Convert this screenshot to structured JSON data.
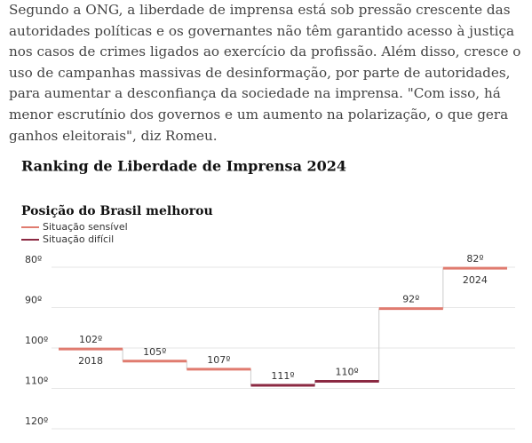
{
  "paragraph": "Segundo a ONG, a liberdade de imprensa está sob pressão crescente das autoridades políticas e os governantes não têm garantido acesso à justiça nos casos de crimes ligados ao exercício da profissão. Além disso, cresce o uso de campanhas massivas de desinformação, por parte de autoridades, para aumentar a desconfiança da sociedade na imprensa. \"Com isso, há menor escrutínio dos governos e um aumento na polarização, o que gera ganhos eleitorais\", diz Romeu.",
  "chart_data": {
    "type": "step",
    "title": "Ranking de Liberdade de Imprensa 2024",
    "subtitle": "Posição do Brasil melhorou",
    "categories": [
      "2018",
      null,
      null,
      null,
      null,
      null,
      "2024"
    ],
    "series": [
      {
        "name": "Situação sensível",
        "color": "#e07b6f",
        "values": [
          102,
          105,
          107,
          null,
          null,
          92,
          82
        ],
        "value_labels": [
          "102º",
          "105º",
          "107º",
          null,
          null,
          "92º",
          "82º"
        ]
      },
      {
        "name": "Situação difícil",
        "color": "#8b2942",
        "values": [
          null,
          null,
          null,
          111,
          110,
          null,
          null
        ],
        "value_labels": [
          null,
          null,
          null,
          "111º",
          "110º",
          null,
          null
        ]
      }
    ],
    "ylim": [
      80,
      120
    ],
    "y_inverted": true,
    "yticks": [
      {
        "value": 80,
        "label": "80º"
      },
      {
        "value": 90,
        "label": "90º"
      },
      {
        "value": 100,
        "label": "100º"
      },
      {
        "value": 110,
        "label": "110º"
      },
      {
        "value": 120,
        "label": "120º"
      }
    ],
    "grid": true
  }
}
